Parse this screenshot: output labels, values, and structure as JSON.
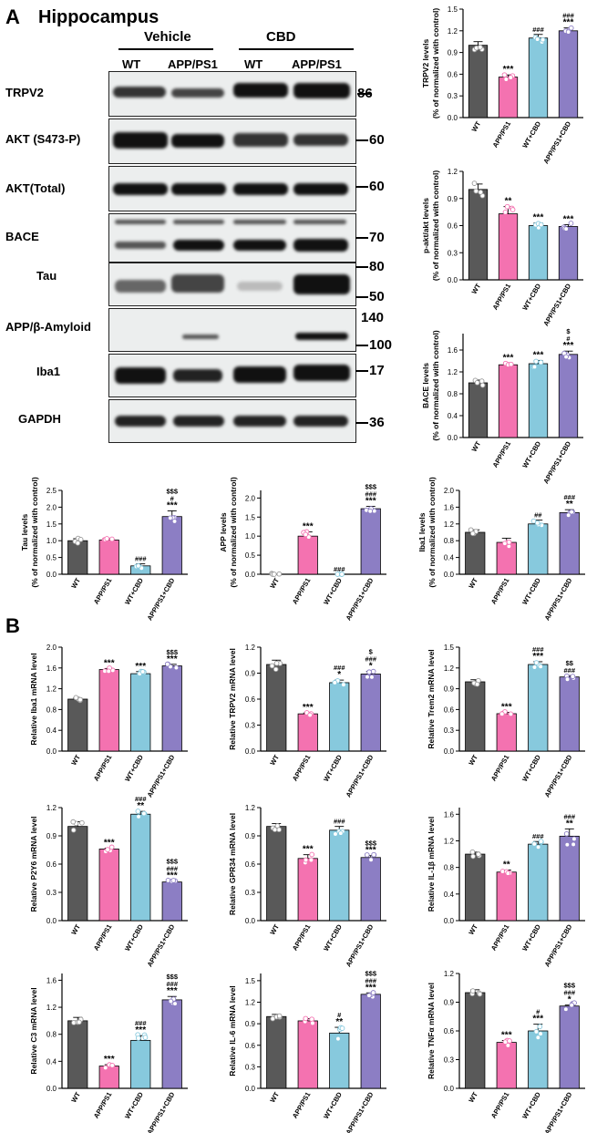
{
  "panel_a": {
    "letter": "A",
    "region": "Hippocampus",
    "groups": [
      "Vehicle",
      "CBD"
    ],
    "lanes": [
      "WT",
      "APP/PS1",
      "WT",
      "APP/PS1"
    ],
    "blots": [
      {
        "label": "TRPV2",
        "markers": [
          "86"
        ]
      },
      {
        "label": "AKT (S473-P)",
        "markers": [
          "60"
        ]
      },
      {
        "label": "AKT(Total)",
        "markers": [
          "60"
        ]
      },
      {
        "label": "BACE",
        "markers": [
          "70"
        ]
      },
      {
        "label": "Tau",
        "markers": [
          "80",
          "50"
        ]
      },
      {
        "label": "APP/β-Amyloid",
        "markers": [
          "140",
          "100"
        ]
      },
      {
        "label": "Iba1",
        "markers": [
          "17"
        ]
      },
      {
        "label": "GAPDH",
        "markers": [
          "36"
        ]
      }
    ]
  },
  "panel_b": {
    "letter": "B"
  },
  "colors": {
    "WT": "#595959",
    "APP/PS1": "#f472b0",
    "WT+CBD": "#87c9dd",
    "APP/PS1+CBD": "#8c7ec4"
  },
  "chart_data": [
    {
      "id": "trpv2",
      "type": "bar",
      "ylabel": "TRPV2 levels\n(% of normalized with control)",
      "categories": [
        "WT",
        "APP/PS1",
        "WT+CBD",
        "APP/PS1+CBD"
      ],
      "values": [
        1.0,
        0.56,
        1.1,
        1.2
      ],
      "errors": [
        0.05,
        0.03,
        0.05,
        0.04
      ],
      "ylim": [
        0,
        1.5
      ],
      "yticks": [
        "0.0",
        "0.3",
        "0.6",
        "0.9",
        "1.2",
        "1.5"
      ],
      "annotations": [
        [],
        [
          "***"
        ],
        [
          "###"
        ],
        [
          "###",
          "***"
        ]
      ]
    },
    {
      "id": "pakt",
      "type": "bar",
      "ylabel": "p-akt/akt levels\n(% of normalized with control)",
      "categories": [
        "WT",
        "APP/PS1",
        "WT+CBD",
        "APP/PS1+CBD"
      ],
      "values": [
        1.0,
        0.73,
        0.6,
        0.59
      ],
      "errors": [
        0.06,
        0.08,
        0.03,
        0.02
      ],
      "ylim": [
        0,
        1.2
      ],
      "yticks": [
        "0.0",
        "0.3",
        "0.6",
        "0.9",
        "1.2"
      ],
      "annotations": [
        [],
        [
          "**"
        ],
        [
          "***"
        ],
        [
          "***"
        ]
      ]
    },
    {
      "id": "bace",
      "type": "bar",
      "ylabel": "BACE levels\n(% of normalized with control)",
      "categories": [
        "WT",
        "APP/PS1",
        "WT+CBD",
        "APP/PS1+CBD"
      ],
      "values": [
        1.0,
        1.33,
        1.35,
        1.52
      ],
      "errors": [
        0.05,
        0.03,
        0.06,
        0.06
      ],
      "ylim": [
        0,
        1.9
      ],
      "yticks": [
        "0.0",
        "0.4",
        "0.8",
        "1.2",
        "1.6"
      ],
      "annotations": [
        [],
        [
          "***"
        ],
        [
          "***"
        ],
        [
          "$",
          "#",
          "***"
        ]
      ]
    },
    {
      "id": "tau",
      "type": "bar",
      "ylabel": "Tau levels\n(% of normalized with control)",
      "categories": [
        "WT",
        "APP/PS1",
        "WT+CBD",
        "APP/PS1+CBD"
      ],
      "values": [
        1.0,
        1.02,
        0.25,
        1.72
      ],
      "errors": [
        0.06,
        0.05,
        0.06,
        0.17
      ],
      "ylim": [
        0,
        2.5
      ],
      "yticks": [
        "0.0",
        "0.5",
        "1.0",
        "1.5",
        "2.0",
        "2.5"
      ],
      "annotations": [
        [],
        [],
        [
          "###"
        ],
        [
          "$$$",
          "#",
          "***"
        ]
      ]
    },
    {
      "id": "app",
      "type": "bar",
      "ylabel": "APP levels\n(% of normalized with control)",
      "categories": [
        "WT",
        "APP/PS1",
        "WT+CBD",
        "APP/PS1+CBD"
      ],
      "values": [
        0.0,
        1.0,
        0.0,
        1.72
      ],
      "errors": [
        0.0,
        0.11,
        0.0,
        0.06
      ],
      "ylim": [
        0,
        2.2
      ],
      "yticks": [
        "0.0",
        "0.5",
        "1.0",
        "1.5",
        "2.0"
      ],
      "annotations": [
        [],
        [
          "***"
        ],
        [
          "###"
        ],
        [
          "$$$",
          "###",
          "***"
        ]
      ]
    },
    {
      "id": "iba1",
      "type": "bar",
      "ylabel": "Iba1 levels\n(% of normalized with control)",
      "categories": [
        "WT",
        "APP/PS1",
        "WT+CBD",
        "APP/PS1+CBD"
      ],
      "values": [
        1.0,
        0.76,
        1.2,
        1.47
      ],
      "errors": [
        0.06,
        0.1,
        0.09,
        0.07
      ],
      "ylim": [
        0,
        2.0
      ],
      "yticks": [
        "0.0",
        "0.4",
        "0.8",
        "1.2",
        "1.6",
        "2.0"
      ],
      "annotations": [
        [],
        [],
        [
          "##"
        ],
        [
          "###",
          "**"
        ]
      ]
    },
    {
      "id": "iba1_mrna",
      "type": "bar",
      "ylabel": "Relative Iba1 mRNA level",
      "categories": [
        "WT",
        "APP/PS1",
        "WT+CBD",
        "APP/PS1+CBD"
      ],
      "values": [
        1.0,
        1.57,
        1.49,
        1.64
      ],
      "errors": [
        0.02,
        0.02,
        0.04,
        0.03
      ],
      "ylim": [
        0,
        2.0
      ],
      "yticks": [
        "0.0",
        "0.4",
        "0.8",
        "1.2",
        "1.6",
        "2.0"
      ],
      "annotations": [
        [],
        [
          "***"
        ],
        [
          "***"
        ],
        [
          "$$$",
          "***"
        ]
      ]
    },
    {
      "id": "trpv2_mrna",
      "type": "bar",
      "ylabel": "Relative TRPV2 mRNA level",
      "categories": [
        "WT",
        "APP/PS1",
        "WT+CBD",
        "APP/PS1+CBD"
      ],
      "values": [
        1.0,
        0.43,
        0.79,
        0.89
      ],
      "errors": [
        0.05,
        0.01,
        0.03,
        0.03
      ],
      "ylim": [
        0,
        1.2
      ],
      "yticks": [
        "0.0",
        "0.3",
        "0.6",
        "0.9",
        "1.2"
      ],
      "annotations": [
        [],
        [
          "***"
        ],
        [
          "###",
          "*"
        ],
        [
          "$",
          "###",
          "*"
        ]
      ]
    },
    {
      "id": "trem2_mrna",
      "type": "bar",
      "ylabel": "Relative Trem2 mRNA level",
      "categories": [
        "WT",
        "APP/PS1",
        "WT+CBD",
        "APP/PS1+CBD"
      ],
      "values": [
        1.0,
        0.54,
        1.25,
        1.07
      ],
      "errors": [
        0.03,
        0.02,
        0.04,
        0.02
      ],
      "ylim": [
        0,
        1.5
      ],
      "yticks": [
        "0.0",
        "0.3",
        "0.6",
        "0.9",
        "1.2",
        "1.5"
      ],
      "annotations": [
        [],
        [
          "***"
        ],
        [
          "###",
          "***"
        ],
        [
          "$$",
          "###"
        ]
      ]
    },
    {
      "id": "p2y6_mrna",
      "type": "bar",
      "ylabel": "Relative P2Y6 mRNA level",
      "categories": [
        "WT",
        "APP/PS1",
        "WT+CBD",
        "APP/PS1+CBD"
      ],
      "values": [
        1.0,
        0.76,
        1.13,
        0.41
      ],
      "errors": [
        0.05,
        0.01,
        0.03,
        0.01
      ],
      "ylim": [
        0,
        1.2
      ],
      "yticks": [
        "0.0",
        "0.3",
        "0.6",
        "0.9",
        "1.2"
      ],
      "annotations": [
        [],
        [
          "***"
        ],
        [
          "###",
          "**"
        ],
        [
          "$$$",
          "###",
          "***"
        ]
      ]
    },
    {
      "id": "gpr34_mrna",
      "type": "bar",
      "ylabel": "Relative GPR34 mRNA level",
      "categories": [
        "WT",
        "APP/PS1",
        "WT+CBD",
        "APP/PS1+CBD"
      ],
      "values": [
        1.0,
        0.66,
        0.96,
        0.67
      ],
      "errors": [
        0.03,
        0.04,
        0.04,
        0.02
      ],
      "ylim": [
        0,
        1.2
      ],
      "yticks": [
        "0.0",
        "0.3",
        "0.6",
        "0.9",
        "1.2"
      ],
      "annotations": [
        [],
        [
          "***"
        ],
        [
          "###"
        ],
        [
          "$$$",
          "***"
        ]
      ]
    },
    {
      "id": "il1b_mrna",
      "type": "bar",
      "ylabel": "Relative IL-1β mRNA level",
      "categories": [
        "WT",
        "APP/PS1",
        "WT+CBD",
        "APP/PS1+CBD"
      ],
      "values": [
        1.0,
        0.73,
        1.15,
        1.27
      ],
      "errors": [
        0.03,
        0.03,
        0.04,
        0.11
      ],
      "ylim": [
        0,
        1.7
      ],
      "yticks": [
        "0.0",
        "0.4",
        "0.8",
        "1.2",
        "1.6"
      ],
      "annotations": [
        [],
        [
          "**"
        ],
        [
          "###"
        ],
        [
          "###",
          "**"
        ]
      ]
    },
    {
      "id": "c3_mrna",
      "type": "bar",
      "ylabel": "Relative C3 mRNA level",
      "categories": [
        "WT",
        "APP/PS1",
        "WT+CBD",
        "APP/PS1+CBD"
      ],
      "values": [
        1.0,
        0.33,
        0.71,
        1.31
      ],
      "errors": [
        0.05,
        0.02,
        0.07,
        0.05
      ],
      "ylim": [
        0,
        1.7
      ],
      "yticks": [
        "0.0",
        "0.4",
        "0.8",
        "1.2",
        "1.6"
      ],
      "annotations": [
        [],
        [
          "***"
        ],
        [
          "###",
          "***"
        ],
        [
          "$$$",
          "###",
          "***"
        ]
      ]
    },
    {
      "id": "il6_mrna",
      "type": "bar",
      "ylabel": "Relative IL-6 mRNA level",
      "categories": [
        "WT",
        "APP/PS1",
        "WT+CBD",
        "APP/PS1+CBD"
      ],
      "values": [
        1.0,
        0.94,
        0.77,
        1.31
      ],
      "errors": [
        0.03,
        0.03,
        0.08,
        0.02
      ],
      "ylim": [
        0,
        1.6
      ],
      "yticks": [
        "0.0",
        "0.3",
        "0.6",
        "0.9",
        "1.2",
        "1.5"
      ],
      "annotations": [
        [],
        [],
        [
          "#",
          "**"
        ],
        [
          "$$$",
          "###",
          "***"
        ]
      ]
    },
    {
      "id": "tnfa_mrna",
      "type": "bar",
      "ylabel": "Relative TNFα mRNA level",
      "categories": [
        "WT",
        "APP/PS1",
        "WT+CBD",
        "APP/PS1+CBD"
      ],
      "values": [
        1.0,
        0.48,
        0.6,
        0.86
      ],
      "errors": [
        0.03,
        0.02,
        0.07,
        0.01
      ],
      "ylim": [
        0,
        1.2
      ],
      "yticks": [
        "0.0",
        "0.3",
        "0.6",
        "0.9",
        "1.2"
      ],
      "annotations": [
        [],
        [
          "***"
        ],
        [
          "#",
          "***"
        ],
        [
          "$$$",
          "###",
          "*"
        ]
      ]
    }
  ]
}
